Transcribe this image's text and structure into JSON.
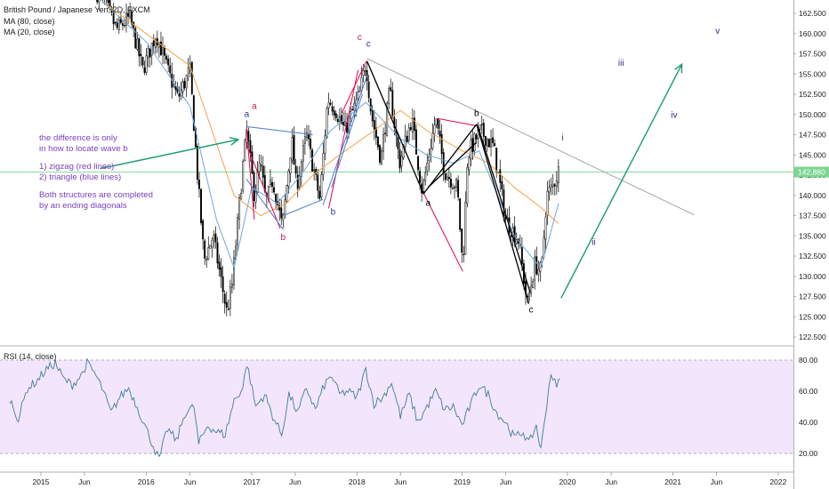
{
  "header": {
    "title": "British Pound / Japanese Yen, 2D, FXCM",
    "ma80": "MA (80, close)",
    "ma20": "MA (20, close)"
  },
  "rsi_label": "RSI (14, close)",
  "price_label": "142.880",
  "annotation": {
    "line1": "the difference is only",
    "line2": "in how to locate wave b",
    "line3": "1) zigzag (red lines)",
    "line4": "2) triangle (blue lines)",
    "line5": "Both structures are completed",
    "line6": "by an ending diagonals"
  },
  "colors": {
    "candle": "#000000",
    "ma80": "#f5a34a",
    "ma20": "#6fa8dc",
    "zigzag": "#e5004f",
    "triangle": "#4a7bd0",
    "black_lines": "#000000",
    "trendline": "#9e9e9e",
    "projection": "#1a9c6e",
    "price_line": "#7cd692",
    "rsi": "#3c7f96",
    "rsi_band": "#f3e5fb",
    "wave_red": "#c2185b",
    "wave_blue": "#28378e",
    "wave_navy": "#2b2b8c"
  },
  "chart_data": [
    {
      "type": "candlestick",
      "title": "British Pound / Japanese Yen, 2D, FXCM",
      "y_axis": {
        "ticks": [
          122.5,
          125.0,
          127.5,
          130.0,
          132.5,
          135.0,
          137.5,
          140.0,
          142.5,
          145.0,
          147.5,
          150.0,
          152.5,
          155.0,
          157.5,
          160.0,
          162.5
        ],
        "tick_labels": [
          "122.500",
          "125.000",
          "127.500",
          "130.000",
          "132.500",
          "135.000",
          "137.500",
          "140.000",
          "142.500",
          "145.000",
          "147.500",
          "150.000",
          "152.500",
          "155.000",
          "157.500",
          "160.000",
          "162.500"
        ]
      },
      "x_axis": {
        "ticks": [
          "2015-01",
          "2015-06",
          "2016-01",
          "2016-06",
          "2017-01",
          "2017-06",
          "2018-01",
          "2018-06",
          "2019-01",
          "2019-06",
          "2020-01",
          "2020-06",
          "2021-01",
          "2021-06",
          "2022-01"
        ],
        "tick_labels": [
          "2015",
          "Jun",
          "2016",
          "Jun",
          "2017",
          "Jun",
          "2018",
          "Jun",
          "2019",
          "Jun",
          "2020",
          "Jun",
          "2021",
          "Jun",
          "2022"
        ]
      },
      "last_price": 142.88,
      "price_path": [
        [
          "2015-07-15",
          165.0
        ],
        [
          "2015-08-15",
          163.5
        ],
        [
          "2015-09-20",
          160.5
        ],
        [
          "2015-11-05",
          162.0
        ],
        [
          "2015-12-20",
          155.5
        ],
        [
          "2016-02-05",
          160.0
        ],
        [
          "2016-03-20",
          155.0
        ],
        [
          "2016-04-20",
          152.0
        ],
        [
          "2016-06-01",
          155.5
        ],
        [
          "2016-06-26",
          143.0
        ],
        [
          "2016-07-20",
          132.0
        ],
        [
          "2016-08-20",
          135.0
        ],
        [
          "2016-10-07",
          125.5
        ],
        [
          "2016-10-25",
          129.0
        ],
        [
          "2016-12-01",
          143.5
        ],
        [
          "2016-12-15",
          148.0
        ],
        [
          "2017-01-10",
          140.0
        ],
        [
          "2017-01-30",
          144.0
        ],
        [
          "2017-02-20",
          139.0
        ],
        [
          "2017-03-15",
          142.0
        ],
        [
          "2017-04-17",
          136.0
        ],
        [
          "2017-05-20",
          147.0
        ],
        [
          "2017-06-05",
          141.0
        ],
        [
          "2017-07-10",
          147.5
        ],
        [
          "2017-08-25",
          139.5
        ],
        [
          "2017-09-22",
          152.0
        ],
        [
          "2017-10-20",
          150.5
        ],
        [
          "2017-11-20",
          148.0
        ],
        [
          "2018-01-10",
          152.5
        ],
        [
          "2018-02-01",
          156.5
        ],
        [
          "2018-02-20",
          150.0
        ],
        [
          "2018-03-25",
          144.5
        ],
        [
          "2018-04-25",
          153.0
        ],
        [
          "2018-05-29",
          144.0
        ],
        [
          "2018-07-10",
          149.5
        ],
        [
          "2018-08-15",
          140.5
        ],
        [
          "2018-10-01",
          149.5
        ],
        [
          "2018-11-01",
          143.0
        ],
        [
          "2018-12-15",
          141.0
        ],
        [
          "2019-01-03",
          131.0
        ],
        [
          "2019-01-20",
          145.0
        ],
        [
          "2019-03-05",
          148.0
        ],
        [
          "2019-04-20",
          146.0
        ],
        [
          "2019-06-01",
          137.0
        ],
        [
          "2019-07-15",
          134.5
        ],
        [
          "2019-08-15",
          126.5
        ],
        [
          "2019-09-10",
          131.5
        ],
        [
          "2019-10-03",
          130.5
        ],
        [
          "2019-10-21",
          140.0
        ],
        [
          "2019-11-10",
          141.0
        ],
        [
          "2019-12-01",
          143.0
        ],
        [
          "2019-12-06",
          142.88
        ]
      ],
      "moving_averages": [
        {
          "name": "MA (80, close)",
          "path": [
            [
              "2015-08-01",
              164.0
            ],
            [
              "2016-01-01",
              160.0
            ],
            [
              "2016-06-01",
              156.0
            ],
            [
              "2016-11-01",
              140.0
            ],
            [
              "2017-02-01",
              137.5
            ],
            [
              "2017-05-01",
              139.0
            ],
            [
              "2017-08-01",
              142.5
            ],
            [
              "2017-11-01",
              145.0
            ],
            [
              "2018-03-01",
              148.0
            ],
            [
              "2018-06-01",
              150.5
            ],
            [
              "2018-09-01",
              148.0
            ],
            [
              "2019-01-01",
              145.5
            ],
            [
              "2019-04-01",
              144.0
            ],
            [
              "2019-07-01",
              141.0
            ],
            [
              "2019-10-01",
              138.5
            ],
            [
              "2019-12-01",
              136.5
            ]
          ]
        },
        {
          "name": "MA (20, close)",
          "path": [
            [
              "2015-08-01",
              164.0
            ],
            [
              "2016-01-01",
              159.0
            ],
            [
              "2016-06-01",
              151.0
            ],
            [
              "2016-09-01",
              137.0
            ],
            [
              "2016-11-01",
              131.0
            ],
            [
              "2017-01-01",
              141.0
            ],
            [
              "2017-04-01",
              139.0
            ],
            [
              "2017-07-01",
              143.0
            ],
            [
              "2017-10-01",
              148.0
            ],
            [
              "2018-02-01",
              151.5
            ],
            [
              "2018-06-01",
              147.0
            ],
            [
              "2018-09-01",
              145.0
            ],
            [
              "2018-12-01",
              144.0
            ],
            [
              "2019-03-01",
              145.5
            ],
            [
              "2019-07-01",
              135.0
            ],
            [
              "2019-10-01",
              131.0
            ],
            [
              "2019-12-01",
              139.0
            ]
          ]
        }
      ],
      "wave_labels": [
        {
          "text": "a",
          "date": "2016-12-15",
          "price": 149.7,
          "color": "wave_blue"
        },
        {
          "text": "a",
          "date": "2017-01-10",
          "price": 150.7,
          "color": "wave_red"
        },
        {
          "text": "b",
          "date": "2017-04-20",
          "price": 134.5,
          "color": "wave_red"
        },
        {
          "text": "b",
          "date": "2017-10-10",
          "price": 137.6,
          "color": "wave_blue"
        },
        {
          "text": "c",
          "date": "2018-01-10",
          "price": 159.2,
          "color": "wave_red"
        },
        {
          "text": "c",
          "date": "2018-02-10",
          "price": 158.4,
          "color": "wave_blue"
        },
        {
          "text": "a",
          "date": "2018-09-05",
          "price": 138.7,
          "color": "black_lines"
        },
        {
          "text": "b",
          "date": "2019-02-20",
          "price": 149.8,
          "color": "black_lines"
        },
        {
          "text": "c",
          "date": "2019-08-28",
          "price": 125.5,
          "color": "black_lines"
        },
        {
          "text": "i",
          "date": "2019-12-15",
          "price": 146.8,
          "color": "wave_navy"
        },
        {
          "text": "ii",
          "date": "2020-04-01",
          "price": 133.9,
          "color": "wave_navy"
        },
        {
          "text": "iii",
          "date": "2020-07-05",
          "price": 156.0,
          "color": "wave_navy"
        },
        {
          "text": "iv",
          "date": "2021-01-05",
          "price": 149.6,
          "color": "wave_navy"
        },
        {
          "text": "v",
          "date": "2021-06-05",
          "price": 160.0,
          "color": "wave_navy"
        }
      ],
      "drawings": {
        "zigzag_red": [
          [
            [
              "2016-12-14",
              148.2
            ],
            [
              "2017-01-10",
              137.0
            ]
          ],
          [
            [
              "2016-12-14",
              146.3
            ],
            [
              "2017-04-10",
              135.9
            ]
          ],
          [
            [
              "2017-09-25",
              138.4
            ],
            [
              "2018-01-05",
              155.5
            ]
          ],
          [
            [
              "2017-11-10",
              150.2
            ],
            [
              "2018-02-03",
              156.6
            ]
          ],
          [
            [
              "2018-10-08",
              149.5
            ],
            [
              "2019-02-20",
              148.6
            ]
          ],
          [
            [
              "2018-08-20",
              140.3
            ],
            [
              "2019-01-03",
              130.6
            ]
          ]
        ],
        "triangle_blue": [
          [
            [
              "2016-12-14",
              148.5
            ],
            [
              "2017-08-01",
              147.5
            ]
          ],
          [
            [
              "2016-12-14",
              142.0
            ],
            [
              "2017-04-20",
              135.8
            ]
          ],
          [
            [
              "2017-04-20",
              137.5
            ],
            [
              "2017-09-05",
              139.5
            ]
          ],
          [
            [
              "2017-09-05",
              138.8
            ],
            [
              "2018-02-05",
              154.8
            ]
          ],
          [
            [
              "2017-10-05",
              141.0
            ],
            [
              "2018-01-20",
              152.5
            ]
          ]
        ],
        "black_abc": [
          [
            [
              "2018-02-05",
              156.6
            ],
            [
              "2018-08-20",
              140.2
            ]
          ],
          [
            [
              "2018-08-20",
              140.2
            ],
            [
              "2019-02-20",
              148.8
            ]
          ],
          [
            [
              "2019-02-20",
              148.8
            ],
            [
              "2019-08-20",
              126.6
            ]
          ],
          [
            [
              "2018-09-05",
              141.0
            ],
            [
              "2019-02-18",
              146.5
            ]
          ],
          [
            [
              "2019-02-25",
              148.5
            ],
            [
              "2019-08-25",
              128.0
            ]
          ]
        ],
        "trendline": [
          [
            "2018-02-05",
            156.9
          ],
          [
            "2021-03-15",
            137.6
          ]
        ],
        "projection_arrow": [
          [
            "2019-12-10",
            127.3
          ],
          [
            "2021-02-01",
            156.2
          ]
        ],
        "pointer_arrow": [
          [
            "2015-07-25",
            143.3
          ],
          [
            "2016-11-15",
            146.9
          ]
        ]
      }
    },
    {
      "type": "line",
      "title": "RSI (14, close)",
      "y_ticks": [
        20.0,
        40.0,
        60.0,
        80.0
      ],
      "y_tick_labels": [
        "20.00",
        "40.00",
        "60.00",
        "80.00"
      ],
      "bands": [
        20,
        80
      ],
      "path": [
        [
          "2014-09-15",
          55
        ],
        [
          "2014-10-15",
          42
        ],
        [
          "2014-11-15",
          62
        ],
        [
          "2014-12-15",
          66
        ],
        [
          "2015-01-20",
          74
        ],
        [
          "2015-02-20",
          78
        ],
        [
          "2015-03-20",
          68
        ],
        [
          "2015-04-20",
          64
        ],
        [
          "2015-05-20",
          70
        ],
        [
          "2015-06-10",
          78
        ],
        [
          "2015-07-05",
          72
        ],
        [
          "2015-08-01",
          62
        ],
        [
          "2015-09-01",
          46
        ],
        [
          "2015-10-01",
          56
        ],
        [
          "2015-11-01",
          62
        ],
        [
          "2015-12-01",
          50
        ],
        [
          "2016-01-01",
          36
        ],
        [
          "2016-02-01",
          22
        ],
        [
          "2016-02-15",
          16
        ],
        [
          "2016-03-15",
          36
        ],
        [
          "2016-04-15",
          28
        ],
        [
          "2016-05-15",
          46
        ],
        [
          "2016-06-15",
          50
        ],
        [
          "2016-07-01",
          26
        ],
        [
          "2016-08-01",
          38
        ],
        [
          "2016-09-01",
          34
        ],
        [
          "2016-10-01",
          32
        ],
        [
          "2016-11-01",
          54
        ],
        [
          "2016-12-01",
          62
        ],
        [
          "2016-12-15",
          78
        ],
        [
          "2017-01-15",
          50
        ],
        [
          "2017-02-15",
          58
        ],
        [
          "2017-03-15",
          44
        ],
        [
          "2017-04-15",
          32
        ],
        [
          "2017-05-10",
          58
        ],
        [
          "2017-06-10",
          46
        ],
        [
          "2017-07-10",
          62
        ],
        [
          "2017-08-10",
          48
        ],
        [
          "2017-09-10",
          64
        ],
        [
          "2017-10-05",
          70
        ],
        [
          "2017-11-01",
          58
        ],
        [
          "2017-12-01",
          60
        ],
        [
          "2018-01-01",
          56
        ],
        [
          "2018-02-01",
          74
        ],
        [
          "2018-03-01",
          52
        ],
        [
          "2018-04-01",
          56
        ],
        [
          "2018-05-01",
          66
        ],
        [
          "2018-06-01",
          44
        ],
        [
          "2018-07-01",
          58
        ],
        [
          "2018-08-01",
          40
        ],
        [
          "2018-09-01",
          50
        ],
        [
          "2018-10-01",
          60
        ],
        [
          "2018-11-01",
          48
        ],
        [
          "2018-12-01",
          50
        ],
        [
          "2019-01-01",
          38
        ],
        [
          "2019-02-01",
          52
        ],
        [
          "2019-03-01",
          64
        ],
        [
          "2019-04-01",
          58
        ],
        [
          "2019-05-01",
          46
        ],
        [
          "2019-06-01",
          40
        ],
        [
          "2019-07-01",
          30
        ],
        [
          "2019-08-01",
          34
        ],
        [
          "2019-08-20",
          26
        ],
        [
          "2019-09-15",
          38
        ],
        [
          "2019-10-01",
          22
        ],
        [
          "2019-10-21",
          52
        ],
        [
          "2019-11-05",
          72
        ],
        [
          "2019-11-25",
          62
        ],
        [
          "2019-12-06",
          68
        ]
      ]
    }
  ]
}
